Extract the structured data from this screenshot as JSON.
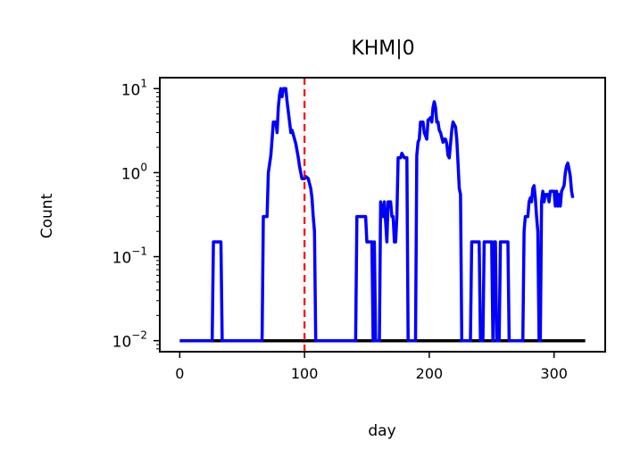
{
  "chart_data": {
    "type": "line",
    "title": "KHM|0",
    "xlabel": "day",
    "ylabel": "Count",
    "xlim": [
      -16,
      341
    ],
    "ylim": [
      0.0074,
      13.5
    ],
    "yscale": "log",
    "grid": false,
    "xticks": [
      {
        "value": 0,
        "label": "0"
      },
      {
        "value": 100,
        "label": "100"
      },
      {
        "value": 200,
        "label": "200"
      },
      {
        "value": 300,
        "label": "300"
      }
    ],
    "yticks": [
      {
        "value": 0.01,
        "base": "10",
        "exp": "−2"
      },
      {
        "value": 0.1,
        "base": "10",
        "exp": "−1"
      },
      {
        "value": 1,
        "base": "10",
        "exp": "0"
      },
      {
        "value": 10,
        "base": "10",
        "exp": "1"
      }
    ],
    "vline": {
      "x": 100,
      "color": "#ff0000",
      "style": "dashed"
    },
    "series": [
      {
        "color": "#000000",
        "points": [
          [
            0,
            0.01
          ],
          [
            325,
            0.01
          ]
        ]
      },
      {
        "color": "#0000ff",
        "points": [
          [
            0,
            0.01
          ],
          [
            26,
            0.01
          ],
          [
            27,
            0.15
          ],
          [
            33,
            0.15
          ],
          [
            34,
            0.01
          ],
          [
            66,
            0.01
          ],
          [
            67,
            0.3
          ],
          [
            70,
            0.3
          ],
          [
            71,
            1
          ],
          [
            73,
            1.6
          ],
          [
            74,
            2.5
          ],
          [
            75,
            4
          ],
          [
            77,
            4
          ],
          [
            78,
            3
          ],
          [
            79,
            6
          ],
          [
            80,
            8.5
          ],
          [
            81,
            10
          ],
          [
            82,
            8
          ],
          [
            83,
            10
          ],
          [
            85,
            10
          ],
          [
            86,
            7
          ],
          [
            88,
            4
          ],
          [
            89,
            3
          ],
          [
            90,
            3.2
          ],
          [
            92,
            2.5
          ],
          [
            93,
            2.2
          ],
          [
            95,
            1.5
          ],
          [
            96,
            1.2
          ],
          [
            97,
            1
          ],
          [
            98,
            0.85
          ],
          [
            100,
            0.85
          ],
          [
            101,
            0.9
          ],
          [
            103,
            0.85
          ],
          [
            105,
            0.65
          ],
          [
            106,
            0.5
          ],
          [
            107,
            0.3
          ],
          [
            108,
            0.2
          ],
          [
            109,
            0.01
          ],
          [
            141,
            0.01
          ],
          [
            142,
            0.3
          ],
          [
            149,
            0.3
          ],
          [
            150,
            0.15
          ],
          [
            154,
            0.15
          ],
          [
            155,
            0.01
          ],
          [
            156,
            0.15
          ],
          [
            157,
            0.01
          ],
          [
            160,
            0.01
          ],
          [
            161,
            0.45
          ],
          [
            163,
            0.3
          ],
          [
            164,
            0.45
          ],
          [
            166,
            0.15
          ],
          [
            167,
            0.45
          ],
          [
            169,
            0.45
          ],
          [
            170,
            0.3
          ],
          [
            171,
            0.3
          ],
          [
            172,
            0.15
          ],
          [
            173,
            0.15
          ],
          [
            174,
            0.3
          ],
          [
            175,
            1.5
          ],
          [
            177,
            1.5
          ],
          [
            178,
            1.7
          ],
          [
            180,
            1.5
          ],
          [
            182,
            1.5
          ],
          [
            183,
            0.01
          ],
          [
            189,
            0.01
          ],
          [
            190,
            1.6
          ],
          [
            191,
            2.3
          ],
          [
            192,
            2.5
          ],
          [
            193,
            4
          ],
          [
            195,
            4
          ],
          [
            196,
            3
          ],
          [
            198,
            2.5
          ],
          [
            199,
            4.2
          ],
          [
            201,
            4.5
          ],
          [
            202,
            4
          ],
          [
            203,
            6
          ],
          [
            204,
            7
          ],
          [
            205,
            6
          ],
          [
            206,
            4
          ],
          [
            207,
            4
          ],
          [
            208,
            3.2
          ],
          [
            209,
            3
          ],
          [
            211,
            2.3
          ],
          [
            212,
            2.5
          ],
          [
            213,
            2.5
          ],
          [
            214,
            2.2
          ],
          [
            215,
            1.6
          ],
          [
            216,
            1.5
          ],
          [
            218,
            3.2
          ],
          [
            219,
            4
          ],
          [
            221,
            3.5
          ],
          [
            222,
            2.5
          ],
          [
            223,
            1.3
          ],
          [
            224,
            0.65
          ],
          [
            225,
            0.55
          ],
          [
            226,
            0.01
          ],
          [
            233,
            0.01
          ],
          [
            234,
            0.15
          ],
          [
            240,
            0.15
          ],
          [
            241,
            0.01
          ],
          [
            243,
            0.01
          ],
          [
            244,
            0.15
          ],
          [
            250,
            0.15
          ],
          [
            251,
            0.01
          ],
          [
            252,
            0.15
          ],
          [
            253,
            0.15
          ],
          [
            254,
            0.01
          ],
          [
            256,
            0.01
          ],
          [
            257,
            0.15
          ],
          [
            263,
            0.15
          ],
          [
            264,
            0.01
          ],
          [
            275,
            0.01
          ],
          [
            276,
            0.2
          ],
          [
            277,
            0.3
          ],
          [
            279,
            0.3
          ],
          [
            280,
            0.45
          ],
          [
            281,
            0.5
          ],
          [
            282,
            0.45
          ],
          [
            283,
            0.65
          ],
          [
            284,
            0.7
          ],
          [
            285,
            0.5
          ],
          [
            286,
            0.3
          ],
          [
            287,
            0.2
          ],
          [
            288,
            0.01
          ],
          [
            289,
            0.01
          ],
          [
            290,
            0.45
          ],
          [
            291,
            0.6
          ],
          [
            292,
            0.45
          ],
          [
            293,
            0.55
          ],
          [
            295,
            0.55
          ],
          [
            296,
            0.45
          ],
          [
            297,
            0.6
          ],
          [
            300,
            0.6
          ],
          [
            301,
            0.4
          ],
          [
            302,
            0.6
          ],
          [
            303,
            0.4
          ],
          [
            304,
            0.55
          ],
          [
            305,
            0.4
          ],
          [
            306,
            0.6
          ],
          [
            308,
            0.7
          ],
          [
            309,
            1
          ],
          [
            310,
            1.2
          ],
          [
            311,
            1.3
          ],
          [
            312,
            1.1
          ],
          [
            313,
            0.9
          ],
          [
            314,
            0.6
          ],
          [
            315,
            0.5
          ]
        ]
      }
    ]
  }
}
